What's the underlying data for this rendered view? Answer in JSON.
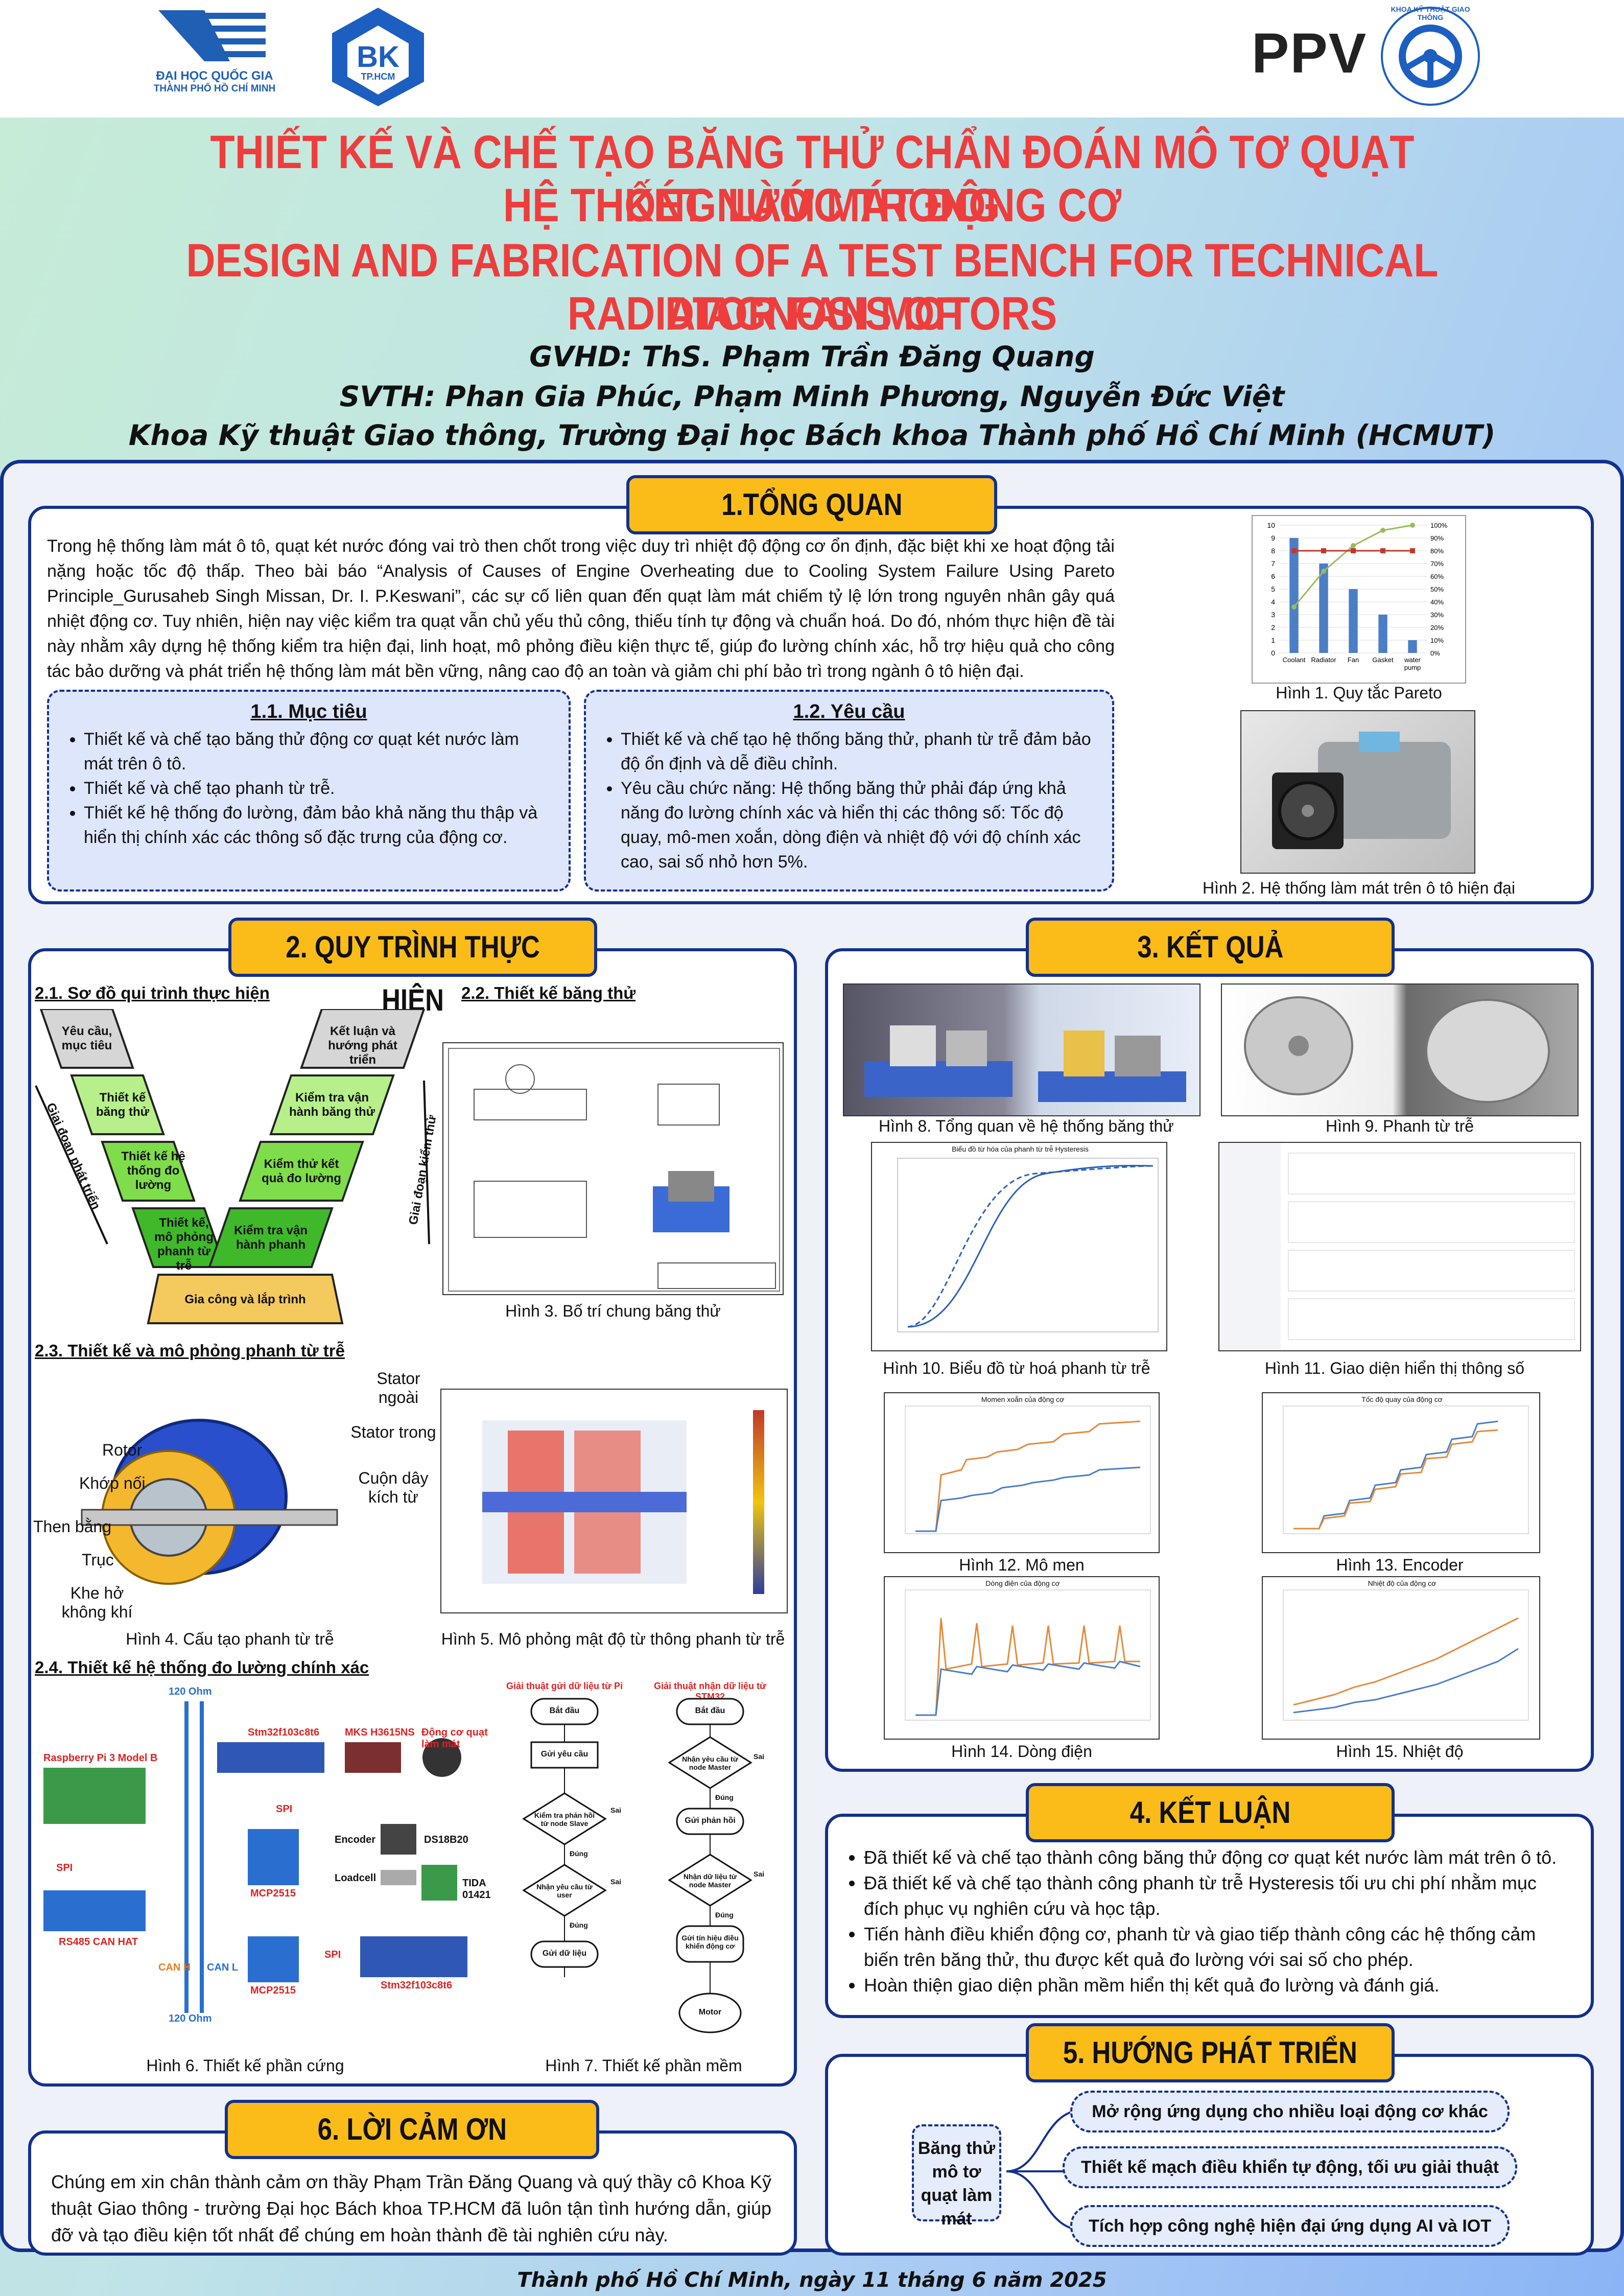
{
  "header": {
    "logo1_line1": "ĐẠI HỌC QUỐC GIA",
    "logo1_line2": "THÀNH PHỐ HỒ CHÍ MINH",
    "logo2_big": "BK",
    "logo2_small": "TP.HCM",
    "logo3": "PPV",
    "logo4_text": "KHOA KỸ THUẬT GIAO THÔNG"
  },
  "title": {
    "vi_line1": "THIẾT KẾ VÀ CHẾ TẠO BĂNG THỬ CHẨN ĐOÁN MÔ TƠ QUẠT KÉT NƯỚC TRONG",
    "vi_line2": "HỆ THỐNG LÀM MÁT ĐỘNG CƠ",
    "en_line1": "DESIGN AND FABRICATION OF A TEST BENCH FOR TECHNICAL DIAGNOSIS OF",
    "en_line2": "RADIATOR FAN MOTORS"
  },
  "authors": {
    "gvhd": "GVHD: ThS. Phạm Trần Đăng Quang",
    "svth": "SVTH: Phan Gia Phúc, Phạm Minh Phương, Nguyễn Đức Việt",
    "faculty": "Khoa Kỹ thuật Giao thông, Trường Đại học Bách khoa Thành phố Hồ Chí Minh (HCMUT)"
  },
  "s1": {
    "title": "1.TỔNG QUAN",
    "intro": "Trong hệ thống làm mát ô tô, quạt két nước đóng vai trò then chốt trong việc duy trì nhiệt độ động cơ ổn định, đặc biệt khi xe hoạt động tải nặng hoặc tốc độ thấp. Theo bài báo “Analysis of Causes of Engine Overheating due to Cooling System Failure Using Pareto Principle_Gurusaheb Singh Missan, Dr. I. P.Keswani”, các sự cố liên quan đến quạt làm mát chiếm tỷ lệ lớn trong nguyên nhân gây quá nhiệt động cơ. Tuy nhiên, hiện nay việc kiểm tra quạt vẫn chủ yếu thủ công, thiếu tính tự động và chuẩn hoá. Do đó, nhóm thực hiện đề tài này nhằm xây dựng hệ thống kiểm tra hiện đại, linh hoạt, mô phỏng điều kiện thực tế, giúp đo lường chính xác, hỗ trợ hiệu quả cho công tác bảo dưỡng và phát triển hệ thống làm mát bền vững, nâng cao độ an toàn và giảm chi phí bảo trì trong ngành ô tô hiện đại.",
    "goal_title": "1.1. Mục tiêu",
    "goals": [
      "Thiết kế và chế tạo băng thử động cơ quạt két nước làm mát trên ô tô.",
      "Thiết kế và chế tạo phanh từ trễ.",
      "Thiết kế hệ thống đo lường, đảm bảo khả năng thu thập và hiển thị chính xác các thông số đặc trưng của động cơ."
    ],
    "req_title": "1.2. Yêu cầu",
    "reqs": [
      "Thiết kế và chế tạo hệ thống băng thử, phanh từ trễ đảm bảo độ ổn định và dễ điều chỉnh.",
      "Yêu cầu chức năng: Hệ thống băng thử phải đáp ứng khả năng đo lường chính xác và hiển thị các thông số: Tốc độ quay, mô-men xoắn, dòng điện và nhiệt độ với độ chính xác cao, sai số nhỏ hơn 5%."
    ],
    "fig1": "Hình 1. Quy tắc Pareto",
    "fig2": "Hình 2. Hệ thống làm mát trên ô tô hiện đại"
  },
  "chart_data": {
    "type": "bar",
    "categories": [
      "Coolant",
      "Radiator",
      "Fan",
      "Gasket",
      "water pump"
    ],
    "values": [
      9,
      7,
      5,
      3,
      1
    ],
    "series": [
      {
        "values": [
          9,
          7,
          5,
          3,
          1
        ]
      },
      {
        "values": [
          36,
          64,
          84,
          96,
          100
        ]
      },
      {
        "values": [
          80,
          80,
          80,
          80,
          80
        ]
      }
    ],
    "ylim": [
      0,
      10
    ],
    "y2lim": [
      0,
      100
    ],
    "yticks": [
      "0",
      "1",
      "2",
      "3",
      "4",
      "5",
      "6",
      "7",
      "8",
      "9",
      "10"
    ],
    "y2ticks": [
      "0%",
      "10%",
      "20%",
      "30%",
      "40%",
      "50%",
      "60%",
      "70%",
      "80%",
      "90%",
      "100%"
    ],
    "colors": {
      "bar": "#4a7ec6",
      "line": "#9bbb59",
      "threshold": "#c0392b"
    }
  },
  "s2": {
    "title": "2. QUY TRÌNH THỰC HIỆN",
    "sub1": "2.1. Sơ đồ qui trình thực hiện",
    "sub2": "2.2. Thiết kế băng thử",
    "sub3": "2.3. Thiết kế và mô phỏng phanh từ trễ",
    "sub4": "2.4. Thiết kế hệ thống đo lường chính xác",
    "flow": {
      "left": [
        "Yêu cầu, mục tiêu",
        "Thiết kế băng thử",
        "Thiết kế hệ thống đo lường",
        "Thiết kế, mô phỏng phanh từ trễ"
      ],
      "right": [
        "Kết luận và hướng phát triển",
        "Kiểm tra vận hành băng thử",
        "Kiểm thử kết quả đo lường",
        "Kiểm tra vận hành phanh"
      ],
      "bottom": "Gia công và lắp trình",
      "left_arrow": "Giai đoạn phát triển",
      "right_arrow": "Giai đoạn kiểm thử"
    },
    "fig3": "Hình 3. Bố trí chung băng thử",
    "fig4": "Hình 4. Cấu tạo phanh từ trễ",
    "fig5": "Hình 5. Mô phỏng mật độ từ thông phanh từ trễ",
    "fig6": "Hình 6. Thiết kế phần cứng",
    "fig7": "Hình 7. Thiết kế phần mềm",
    "brake_labels": [
      "Stator ngoài",
      "Stator trong",
      "Rotor",
      "Khớp nối",
      "Cuộn dây kích từ",
      "Then bằng",
      "Trục",
      "Khe hở không khí"
    ],
    "hw_labels": [
      "Raspberry Pi 3 Model B",
      "RS485 CAN HAT",
      "120 Ohm",
      "120 Ohm",
      "Stm32f103c8t6",
      "MCP2515",
      "MCP2515",
      "Stm32f103c8t6",
      "MKS H3615NS",
      "Động cơ quạt làm mát",
      "Encoder",
      "Loadcell",
      "DS18B20",
      "TIDA 01421",
      "SPI",
      "SPI",
      "SPI",
      "CAN H",
      "CAN L"
    ],
    "sw_left_title": "Giải thuật gửi dữ liệu từ Pi",
    "sw_right_title": "Giải thuật nhận dữ liệu từ STM32",
    "sw_left": [
      "Bắt đầu",
      "Gửi yêu cầu",
      "Kiểm tra phản hồi từ node Slave",
      "Nhận yêu cầu từ user",
      "Gửi dữ liệu"
    ],
    "sw_right": [
      "Bắt đầu",
      "Nhận yêu cầu từ node Master",
      "Gửi phản hồi",
      "Nhận dữ liệu từ node Master",
      "Gửi tín hiệu điều khiển động cơ",
      "Motor"
    ],
    "sw_yes": "Đúng",
    "sw_no": "Sai"
  },
  "s3": {
    "title": "3. KẾT QUẢ",
    "fig8": "Hình 8. Tổng quan về hệ thống băng thử",
    "fig9": "Hình 9. Phanh từ trễ",
    "fig10": "Hình 10. Biểu đồ từ hoá phanh từ trễ",
    "fig11": "Hình 11. Giao diện hiển thị thông số",
    "fig12": "Hình 12. Mô men",
    "fig13": "Hình 13. Encoder",
    "fig14": "Hình 14. Dòng điện",
    "fig15": "Hình 15. Nhiệt độ",
    "c10_title": "Biểu đồ từ hóa của phanh từ trễ Hysteresis",
    "c12_title": "Momen xoắn của động cơ",
    "c13_title": "Tốc độ quay của động cơ",
    "c14_title": "Dòng điện của động cơ",
    "c15_title": "Nhiệt độ của động cơ"
  },
  "s4": {
    "title": "4. KẾT LUẬN",
    "items": [
      "Đã thiết kế và chế tạo thành công băng thử động cơ quạt két nước làm mát trên ô tô.",
      "Đã thiết kế và chế tạo thành công phanh từ trễ Hysteresis tối ưu chi phí nhằm mục đích phục vụ nghiên cứu và học tập.",
      "Tiến hành điều khiển động cơ, phanh từ và giao tiếp thành công các hệ thống cảm biến trên băng thử, thu được kết quả đo lường với sai số cho phép.",
      "Hoàn thiện giao diện phần mềm hiển thị kết quả đo lường và đánh giá."
    ]
  },
  "s5": {
    "title": "5. HƯỚNG PHÁT TRIỂN",
    "root": "Băng thử mô tơ quạt làm mát",
    "items": [
      "Mở rộng ứng dụng cho nhiều loại động cơ khác",
      "Thiết kế mạch điều khiển tự động, tối ưu giải thuật",
      "Tích hợp công nghệ hiện đại ứng dụng AI và IOT"
    ]
  },
  "s6": {
    "title": "6. LỜI CẢM ƠN",
    "text": "Chúng em xin chân thành cảm ơn thầy Phạm Trần Đăng Quang và quý thầy cô Khoa Kỹ thuật Giao thông - trường Đại học Bách khoa TP.HCM đã luôn tận tình hướng dẫn, giúp đỡ và tạo điều kiện tốt nhất để chúng em hoàn thành đề tài nghiên cứu này."
  },
  "footer": "Thành phố Hồ Chí Minh, ngày 11 tháng 6 năm 2025"
}
